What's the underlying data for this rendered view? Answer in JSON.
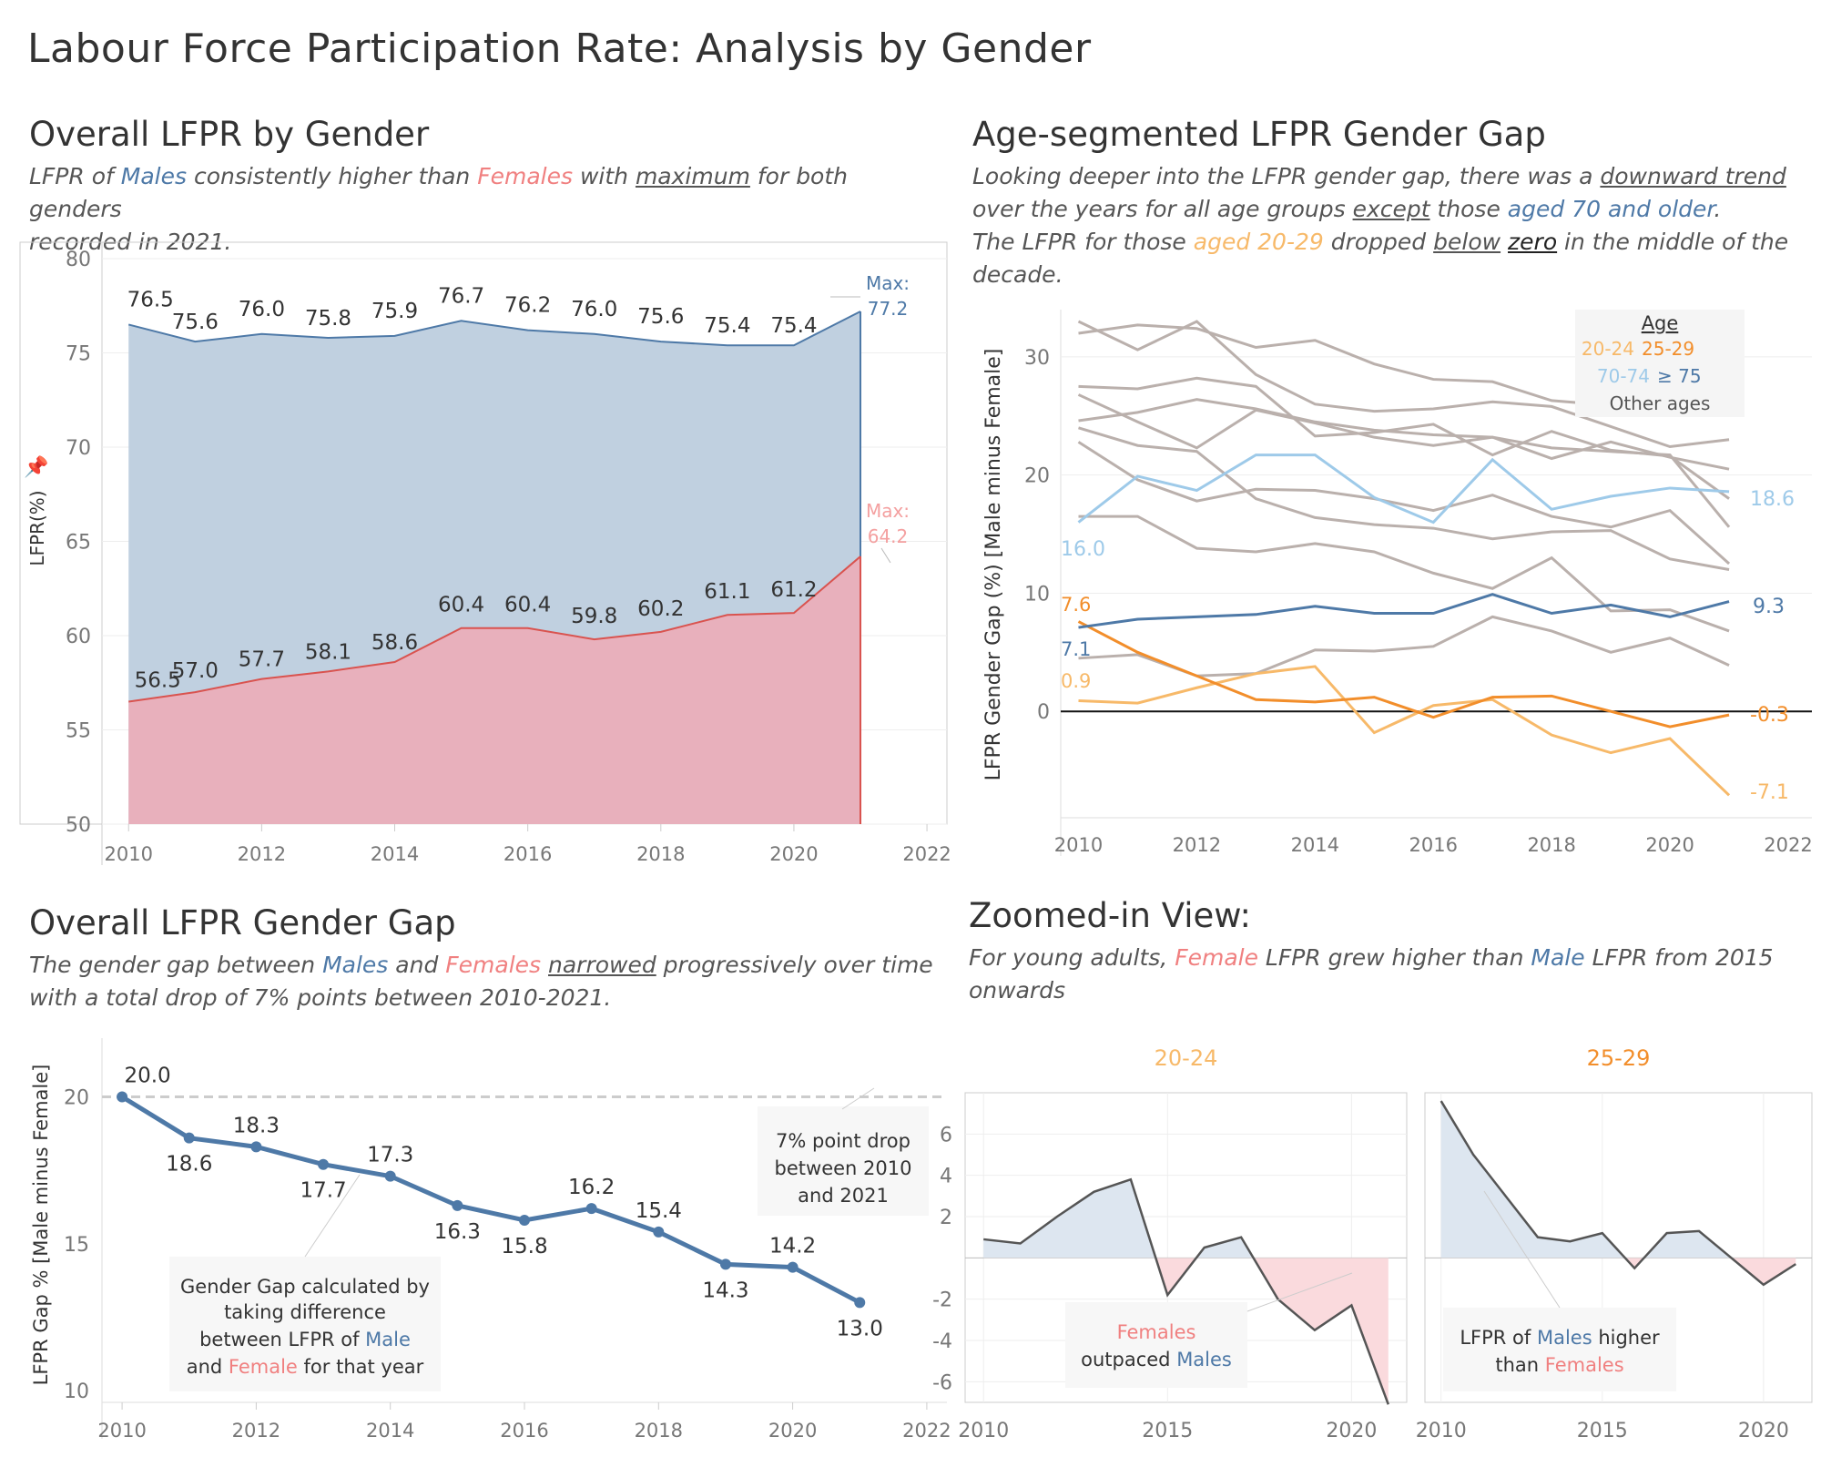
{
  "title": "Labour Force Participation Rate: Analysis by Gender",
  "sections": {
    "overall": {
      "title": "Overall LFPR by Gender",
      "sub": [
        "LFPR of ",
        "Males",
        " consistently higher than ",
        "Females",
        " with ",
        "maximum",
        " for both genders",
        "recorded in 2021."
      ]
    },
    "age": {
      "title": "Age-segmented LFPR Gender Gap",
      "sub": [
        "Looking deeper into the LFPR gender gap, there was a ",
        "downward trend",
        "over the years for ",
        "all age groups",
        " ",
        "except",
        "  those ",
        "aged 70 and older",
        ".",
        "The LFPR for those ",
        "aged 20-29",
        " dropped ",
        "below",
        " ",
        "zero",
        "  in the middle of the",
        "decade."
      ]
    },
    "gap": {
      "title": "Overall LFPR Gender Gap",
      "sub": [
        "The gender gap between ",
        "Males",
        " and ",
        "Females",
        " ",
        "narrowed",
        "  progressively over time",
        "with a total drop of  7% points between 2010-2021."
      ]
    },
    "zoom": {
      "title": "Zoomed-in View:",
      "sub": [
        "For young adults, ",
        "Female",
        " LFPR grew higher than ",
        "Male",
        " LFPR  from 2015",
        "onwards"
      ]
    }
  },
  "colors": {
    "male": "#4e79a7",
    "female": "#f08080",
    "male_fill": "#c0d0e0",
    "female_fill": "#e8b0bc",
    "orange": "#f28e2b",
    "lorange": "#f7b969",
    "lblue": "#9ecae9",
    "grey": "#bab0ac"
  },
  "chart_data": [
    {
      "id": "overall_lfpr",
      "type": "area",
      "ylabel": "LFPR(%)",
      "xlim": [
        2010,
        2022
      ],
      "ylim": [
        50,
        80
      ],
      "x_ticks": [
        2010,
        2012,
        2014,
        2016,
        2018,
        2020,
        2022
      ],
      "y_ticks": [
        50,
        55,
        60,
        65,
        70,
        75,
        80
      ],
      "x": [
        2010,
        2011,
        2012,
        2013,
        2014,
        2015,
        2016,
        2017,
        2018,
        2019,
        2020,
        2021
      ],
      "series": [
        {
          "name": "Males",
          "values": [
            76.5,
            75.6,
            76.0,
            75.8,
            75.9,
            76.7,
            76.2,
            76.0,
            75.6,
            75.4,
            75.4,
            77.2
          ]
        },
        {
          "name": "Females",
          "values": [
            56.5,
            57.0,
            57.7,
            58.1,
            58.6,
            60.4,
            60.4,
            59.8,
            60.2,
            61.1,
            61.2,
            64.2
          ]
        }
      ],
      "data_labels_male": [
        "76.5",
        "75.6",
        "76.0",
        "75.8",
        "75.9",
        "76.7",
        "76.2",
        "76.0",
        "75.6",
        "75.4",
        "75.4"
      ],
      "data_labels_female": [
        "56.5",
        "57.0",
        "57.7",
        "58.1",
        "58.6",
        "60.4",
        "60.4",
        "59.8",
        "60.2",
        "61.1",
        "61.2"
      ],
      "max_label_prefix": "Max:",
      "max_male": "77.2",
      "max_female": "64.2"
    },
    {
      "id": "age_gap",
      "type": "line",
      "ylabel": "LFPR Gender Gap (%) [Male minus Female]",
      "xlim": [
        2010,
        2022
      ],
      "ylim": [
        -9,
        34
      ],
      "x_ticks": [
        2010,
        2012,
        2014,
        2016,
        2018,
        2020,
        2022
      ],
      "y_ticks": [
        0,
        10,
        20,
        30
      ],
      "x": [
        2010,
        2011,
        2012,
        2013,
        2014,
        2015,
        2016,
        2017,
        2018,
        2019,
        2020,
        2021
      ],
      "legend": {
        "title": "Age",
        "items": [
          "20-24",
          "25-29",
          "70-74",
          "≥ 75",
          "Other ages"
        ]
      },
      "series": [
        {
          "name": "20-24",
          "values": [
            0.9,
            0.7,
            2.0,
            3.2,
            3.8,
            -1.8,
            0.5,
            1.0,
            -2.0,
            -3.5,
            -2.3,
            -7.1
          ]
        },
        {
          "name": "25-29",
          "values": [
            7.6,
            5.0,
            3.0,
            1.0,
            0.8,
            1.2,
            -0.5,
            1.2,
            1.3,
            0.0,
            -1.3,
            -0.3
          ]
        },
        {
          "name": "70-74",
          "values": [
            16.0,
            19.9,
            18.7,
            21.7,
            21.7,
            18.1,
            16.0,
            21.3,
            17.1,
            18.2,
            18.9,
            18.6
          ]
        },
        {
          "name": "≥ 75",
          "values": [
            7.1,
            7.8,
            8.0,
            8.2,
            8.9,
            8.3,
            8.3,
            9.9,
            8.3,
            9.0,
            8.0,
            9.3
          ]
        },
        {
          "name": "Other ages",
          "values": [
            33.0,
            30.6,
            33.0,
            28.5,
            26.0,
            25.4,
            25.6,
            26.2,
            25.8,
            24.1,
            22.4,
            23.0
          ]
        },
        {
          "name": "Other ages",
          "values": [
            32.0,
            32.7,
            32.4,
            30.8,
            31.4,
            29.4,
            28.1,
            27.9,
            26.3,
            25.9,
            25.3,
            25.6
          ]
        },
        {
          "name": "Other ages",
          "values": [
            27.5,
            27.3,
            28.2,
            27.5,
            23.3,
            23.6,
            24.3,
            21.7,
            23.7,
            22.1,
            21.6,
            18.0
          ]
        },
        {
          "name": "Other ages",
          "values": [
            26.8,
            24.5,
            22.3,
            25.5,
            24.4,
            23.2,
            22.5,
            23.2,
            21.4,
            22.8,
            21.5,
            20.5
          ]
        },
        {
          "name": "Other ages",
          "values": [
            24.6,
            25.3,
            26.4,
            25.6,
            24.5,
            23.8,
            23.4,
            23.2,
            22.3,
            22.0,
            21.7,
            15.6
          ]
        },
        {
          "name": "Other ages",
          "values": [
            22.8,
            19.6,
            17.8,
            18.8,
            18.7,
            18.0,
            17.0,
            18.3,
            16.5,
            15.6,
            17.0,
            12.5
          ]
        },
        {
          "name": "Other ages",
          "values": [
            16.5,
            16.5,
            13.8,
            13.5,
            14.2,
            13.5,
            11.7,
            10.4,
            13.0,
            8.5,
            8.6,
            6.8
          ]
        },
        {
          "name": "Other ages",
          "values": [
            24.0,
            22.5,
            22.0,
            18.0,
            16.4,
            15.8,
            15.5,
            14.6,
            15.2,
            15.3,
            12.9,
            12.0
          ]
        },
        {
          "name": "Other ages",
          "values": [
            4.5,
            4.8,
            3.0,
            3.2,
            5.2,
            5.1,
            5.5,
            8.0,
            6.8,
            5.0,
            6.2,
            3.9
          ]
        }
      ],
      "end_labels": {
        "20-24_start": "0.9",
        "20-24_end": "-7.1",
        "25-29_start": "7.6",
        "25-29_end": "-0.3",
        "70-74_start": "16.0",
        "70-74_end": "18.6",
        "75_start": "7.1",
        "75_end": "9.3"
      }
    },
    {
      "id": "overall_gap",
      "type": "line",
      "ylabel": "LFPR Gap % [Male minus Female]",
      "xlim": [
        2010,
        2022
      ],
      "ylim": [
        10,
        22
      ],
      "x_ticks": [
        2010,
        2012,
        2014,
        2016,
        2018,
        2020,
        2022
      ],
      "y_ticks": [
        10,
        15,
        20
      ],
      "x": [
        2010,
        2011,
        2012,
        2013,
        2014,
        2015,
        2016,
        2017,
        2018,
        2019,
        2020,
        2021
      ],
      "series": [
        {
          "name": "Gap",
          "values": [
            20.0,
            18.6,
            18.3,
            17.7,
            17.3,
            16.3,
            15.8,
            16.2,
            15.4,
            14.3,
            14.2,
            13.0
          ]
        }
      ],
      "data_labels": [
        "20.0",
        "18.6",
        "18.3",
        "17.7",
        "17.3",
        "16.3",
        "15.8",
        "16.2",
        "15.4",
        "14.3",
        "14.2",
        "13.0"
      ],
      "reference_line": 20.0,
      "annotations": [
        [
          "7% point drop",
          "between 2010",
          "and 2021"
        ],
        [
          "Gender Gap calculated by",
          "taking difference",
          "between LFPR of ",
          "Male",
          "and ",
          "Female",
          " for that year"
        ]
      ]
    },
    {
      "id": "zoom_20_24",
      "type": "area",
      "title": "20-24",
      "xlim": [
        2009.5,
        2021.5
      ],
      "ylim": [
        -7,
        8
      ],
      "x_ticks": [
        2010,
        2015,
        2020
      ],
      "y_ticks": [
        -6,
        -4,
        -2,
        2,
        4,
        6
      ],
      "x": [
        2010,
        2011,
        2012,
        2013,
        2014,
        2015,
        2016,
        2017,
        2018,
        2019,
        2020,
        2021
      ],
      "values": [
        0.9,
        0.7,
        2.0,
        3.2,
        3.8,
        -1.8,
        0.5,
        1.0,
        -2.0,
        -3.5,
        -2.3,
        -7.1
      ],
      "annotation": [
        "Females",
        "outpaced ",
        "Males"
      ]
    },
    {
      "id": "zoom_25_29",
      "type": "area",
      "title": "25-29",
      "xlim": [
        2009.5,
        2021.5
      ],
      "ylim": [
        -7,
        8
      ],
      "x_ticks": [
        2010,
        2015,
        2020
      ],
      "x": [
        2010,
        2011,
        2012,
        2013,
        2014,
        2015,
        2016,
        2017,
        2018,
        2019,
        2020,
        2021
      ],
      "values": [
        7.6,
        5.0,
        3.0,
        1.0,
        0.8,
        1.2,
        -0.5,
        1.2,
        1.3,
        0.0,
        -1.3,
        -0.3
      ],
      "annotation": [
        "LFPR of ",
        "Males",
        " higher",
        "than ",
        "Females"
      ]
    }
  ]
}
